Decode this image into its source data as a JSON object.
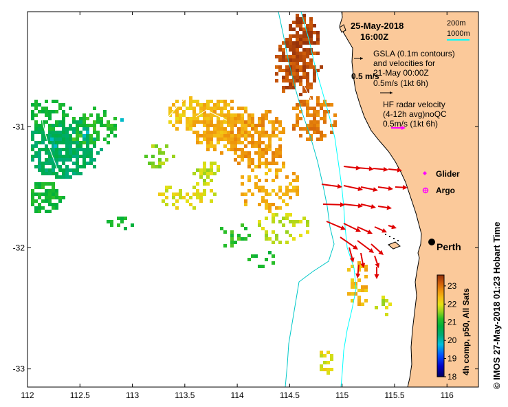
{
  "header": {
    "date": "25-May-2018",
    "time": "16:00Z"
  },
  "depth_legend": {
    "label_200": "200m",
    "label_1000": "1000m",
    "color_200": "#00ffff",
    "color_1000": "#00c8c8"
  },
  "gsla": {
    "line1": "GSLA (0.1m contours)",
    "line2": "and velocities for",
    "line3": "21-May 00:00Z",
    "speed_big": "0.5 m/s",
    "speed_ref": "0.5m/s (1kt 6h)"
  },
  "hf_radar": {
    "line1": "HF radar velocity",
    "line2": "(4-12h avg)noQC",
    "line3": "0.5m/s (1kt 6h)",
    "arrow_color": "#ff00ff",
    "vector_color": "#e00000"
  },
  "markers": {
    "glider_label": "Glider",
    "argo_label": "Argo",
    "city_label": "Perth",
    "marker_color": "#ff00ff"
  },
  "colorbar": {
    "title": "4h comp, p50, All Sats",
    "ticks": [
      "23",
      "22",
      "21",
      "20",
      "19",
      "18"
    ],
    "range": [
      18,
      23.6
    ]
  },
  "credit": "© IMOS 27-May-2018 01:23 Hobart Time",
  "axes": {
    "x_ticks": [
      "112",
      "112.5",
      "113",
      "113.5",
      "114",
      "114.5",
      "115",
      "115.5",
      "116"
    ],
    "y_ticks": [
      "-31",
      "-32",
      "-33"
    ],
    "lon_range": [
      112,
      116.3
    ],
    "lat_range": [
      -30.05,
      -33.15
    ]
  },
  "colors": {
    "land": "#fbc99a",
    "ocean": "#ffffff"
  }
}
